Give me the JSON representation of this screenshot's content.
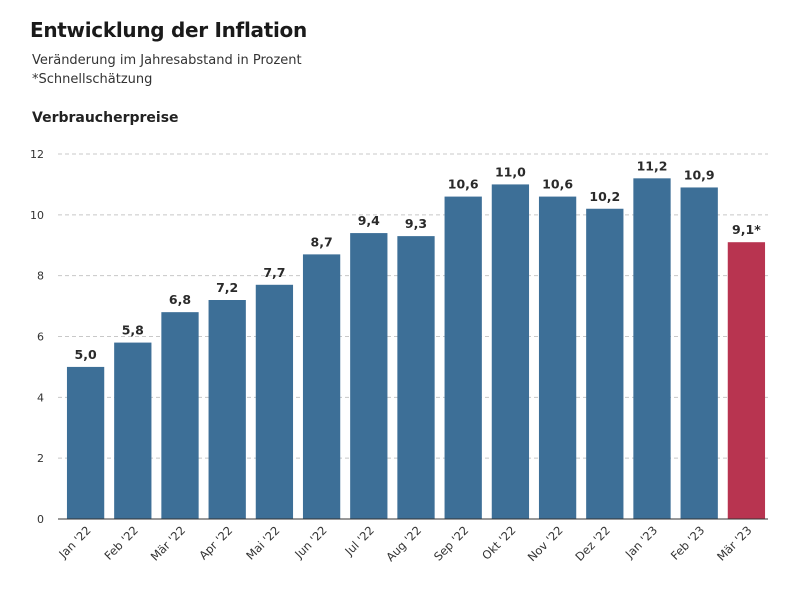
{
  "header": {
    "title": "Entwicklung der Inflation",
    "subtitle": "Veränderung im Jahresabstand in Prozent",
    "note": "*Schnellschätzung",
    "section": "Verbraucherpreise"
  },
  "colors": {
    "bar": "#3d6f97",
    "highlight": "#b83450"
  },
  "chart_data": {
    "type": "bar",
    "title": "Verbraucherpreise",
    "xlabel": "",
    "ylabel": "",
    "ylim": [
      0,
      12
    ],
    "yticks": [
      0,
      2,
      4,
      6,
      8,
      10,
      12
    ],
    "grid": true,
    "categories": [
      "Jan '22",
      "Feb '22",
      "Mär '22",
      "Apr '22",
      "Mai '22",
      "Jun '22",
      "Jul '22",
      "Aug '22",
      "Sep '22",
      "Okt '22",
      "Nov '22",
      "Dez '22",
      "Jan '23",
      "Feb '23",
      "Mär '23"
    ],
    "values": [
      5.0,
      5.8,
      6.8,
      7.2,
      7.7,
      8.7,
      9.4,
      9.3,
      10.6,
      11.0,
      10.6,
      10.2,
      11.2,
      10.9,
      9.1
    ],
    "labels": [
      "5,0",
      "5,8",
      "6,8",
      "7,2",
      "7,7",
      "8,7",
      "9,4",
      "9,3",
      "10,6",
      "11,0",
      "10,6",
      "10,2",
      "11,2",
      "10,9",
      "9,1*"
    ],
    "highlight": [
      false,
      false,
      false,
      false,
      false,
      false,
      false,
      false,
      false,
      false,
      false,
      false,
      false,
      false,
      true
    ]
  }
}
